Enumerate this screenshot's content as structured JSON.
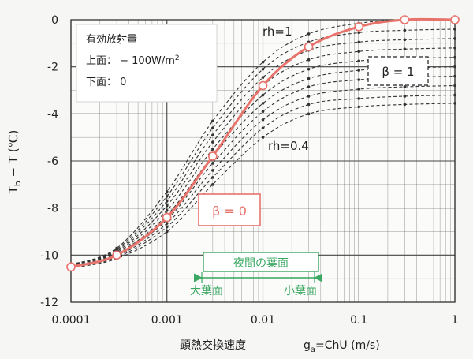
{
  "chart_data": {
    "type": "line",
    "xscale": "log",
    "xlim": [
      0.0001,
      1
    ],
    "ylim": [
      -12,
      0
    ],
    "x_ticks": [
      {
        "value": 0.0001,
        "label": "0.0001"
      },
      {
        "value": 0.001,
        "label": "0.001"
      },
      {
        "value": 0.01,
        "label": "0.01"
      },
      {
        "value": 0.1,
        "label": "0.1"
      },
      {
        "value": 1,
        "label": "1"
      }
    ],
    "y_ticks": [
      {
        "value": 0,
        "label": "0"
      },
      {
        "value": -2,
        "label": "-2"
      },
      {
        "value": -4,
        "label": "-4"
      },
      {
        "value": -6,
        "label": "-6"
      },
      {
        "value": -8,
        "label": "-8"
      },
      {
        "value": -10,
        "label": "-10"
      },
      {
        "value": -12,
        "label": "-12"
      }
    ],
    "xlabel": "顕熱交換速度",
    "xlabel_formula": {
      "g": "g",
      "sub": "a",
      "rest": "=ChU  (m/s)"
    },
    "ylabel": {
      "t1": "T",
      "sub": "b",
      "t2": " − T  (℃)"
    },
    "grid": true,
    "legend": {
      "title": "有効放射量",
      "line1": "上面： − 100W/m",
      "line1_sup": "2",
      "line2": "下面：   0"
    },
    "annotations": {
      "rh1": "rh=1",
      "rh04": "rh=0.4",
      "beta1": "β = 1",
      "beta0": "β = 0",
      "night_leaf": "夜間の葉面",
      "large_leaf": "大葉面",
      "small_leaf": "小葉面"
    },
    "colors": {
      "beta0": "#e8736b",
      "dashed": "#333333",
      "night": "#3aa862",
      "grid": "#444444"
    },
    "x_points": [
      0.0001,
      0.0003,
      0.001,
      0.003,
      0.01,
      0.03,
      0.1,
      0.3,
      1
    ],
    "series": [
      {
        "values": [
          -10.5,
          -10.0,
          -8.4,
          -5.8,
          -2.8,
          -1.15,
          -0.3,
          0.0,
          0.0
        ],
        "style": "beta0"
      },
      {
        "values": [
          -10.4,
          -9.7,
          -7.3,
          -4.3,
          -1.8,
          -0.6,
          -0.15,
          0.0,
          0.0
        ],
        "style": "dashed"
      },
      {
        "values": [
          -10.4,
          -9.75,
          -7.5,
          -4.6,
          -2.1,
          -0.95,
          -0.55,
          -0.45,
          -0.4
        ],
        "style": "dashed"
      },
      {
        "values": [
          -10.4,
          -9.8,
          -7.7,
          -4.9,
          -2.45,
          -1.3,
          -0.95,
          -0.85,
          -0.8
        ],
        "style": "dashed"
      },
      {
        "values": [
          -10.4,
          -9.85,
          -7.9,
          -5.2,
          -2.8,
          -1.7,
          -1.35,
          -1.25,
          -1.2
        ],
        "style": "dashed"
      },
      {
        "values": [
          -10.4,
          -9.9,
          -8.1,
          -5.5,
          -3.2,
          -2.1,
          -1.75,
          -1.65,
          -1.6
        ],
        "style": "dashed"
      },
      {
        "values": [
          -10.45,
          -9.95,
          -8.3,
          -5.8,
          -3.55,
          -2.5,
          -2.15,
          -2.05,
          -2.0
        ],
        "style": "dashed"
      },
      {
        "values": [
          -10.45,
          -10.0,
          -8.5,
          -6.1,
          -3.9,
          -2.85,
          -2.55,
          -2.45,
          -2.4
        ],
        "style": "dashed"
      },
      {
        "values": [
          -10.5,
          -10.05,
          -8.65,
          -6.4,
          -4.25,
          -3.25,
          -2.95,
          -2.85,
          -2.8
        ],
        "style": "dashed"
      },
      {
        "values": [
          -10.5,
          -10.1,
          -8.8,
          -6.7,
          -4.6,
          -3.6,
          -3.35,
          -3.25,
          -3.2
        ],
        "style": "dashed"
      },
      {
        "values": [
          -10.55,
          -10.15,
          -9.0,
          -7.0,
          -5.0,
          -4.0,
          -3.7,
          -3.6,
          -3.55
        ],
        "style": "dashed"
      }
    ]
  }
}
